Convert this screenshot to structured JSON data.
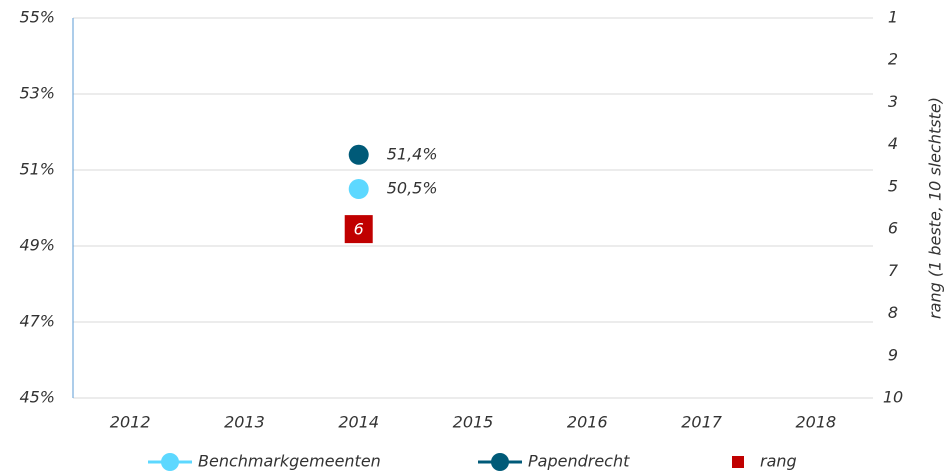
{
  "chart_data": {
    "type": "line",
    "categories": [
      "2012",
      "2013",
      "2014",
      "2015",
      "2016",
      "2017",
      "2018"
    ],
    "series": [
      {
        "name": "Benchmarkgemeenten",
        "color": "#5dd8ff",
        "values": [
          null,
          null,
          50.5,
          null,
          null,
          null,
          null
        ],
        "value_labels": [
          null,
          null,
          "50,5%",
          null,
          null,
          null,
          null
        ]
      },
      {
        "name": "Papendrecht",
        "color": "#005a78",
        "values": [
          null,
          null,
          51.4,
          null,
          null,
          null,
          null
        ],
        "value_labels": [
          null,
          null,
          "51,4%",
          null,
          null,
          null,
          null
        ]
      },
      {
        "name": "rang",
        "color": "#c00000",
        "axis": "y2",
        "marker": "square",
        "values": [
          null,
          null,
          6,
          null,
          null,
          null,
          null
        ]
      }
    ],
    "ylim": [
      45,
      55
    ],
    "yticks": [
      {
        "value": 45,
        "label": "45%"
      },
      {
        "value": 47,
        "label": "47%"
      },
      {
        "value": 49,
        "label": "49%"
      },
      {
        "value": 51,
        "label": "51%"
      },
      {
        "value": 53,
        "label": "53%"
      },
      {
        "value": 55,
        "label": "55%"
      }
    ],
    "y2lim": [
      10,
      1
    ],
    "y2ticks": [
      1,
      2,
      3,
      4,
      5,
      6,
      7,
      8,
      9,
      10
    ],
    "y2label": "rang (1 beste, 10 slechtste)",
    "grid": true,
    "legend": "bottom"
  }
}
